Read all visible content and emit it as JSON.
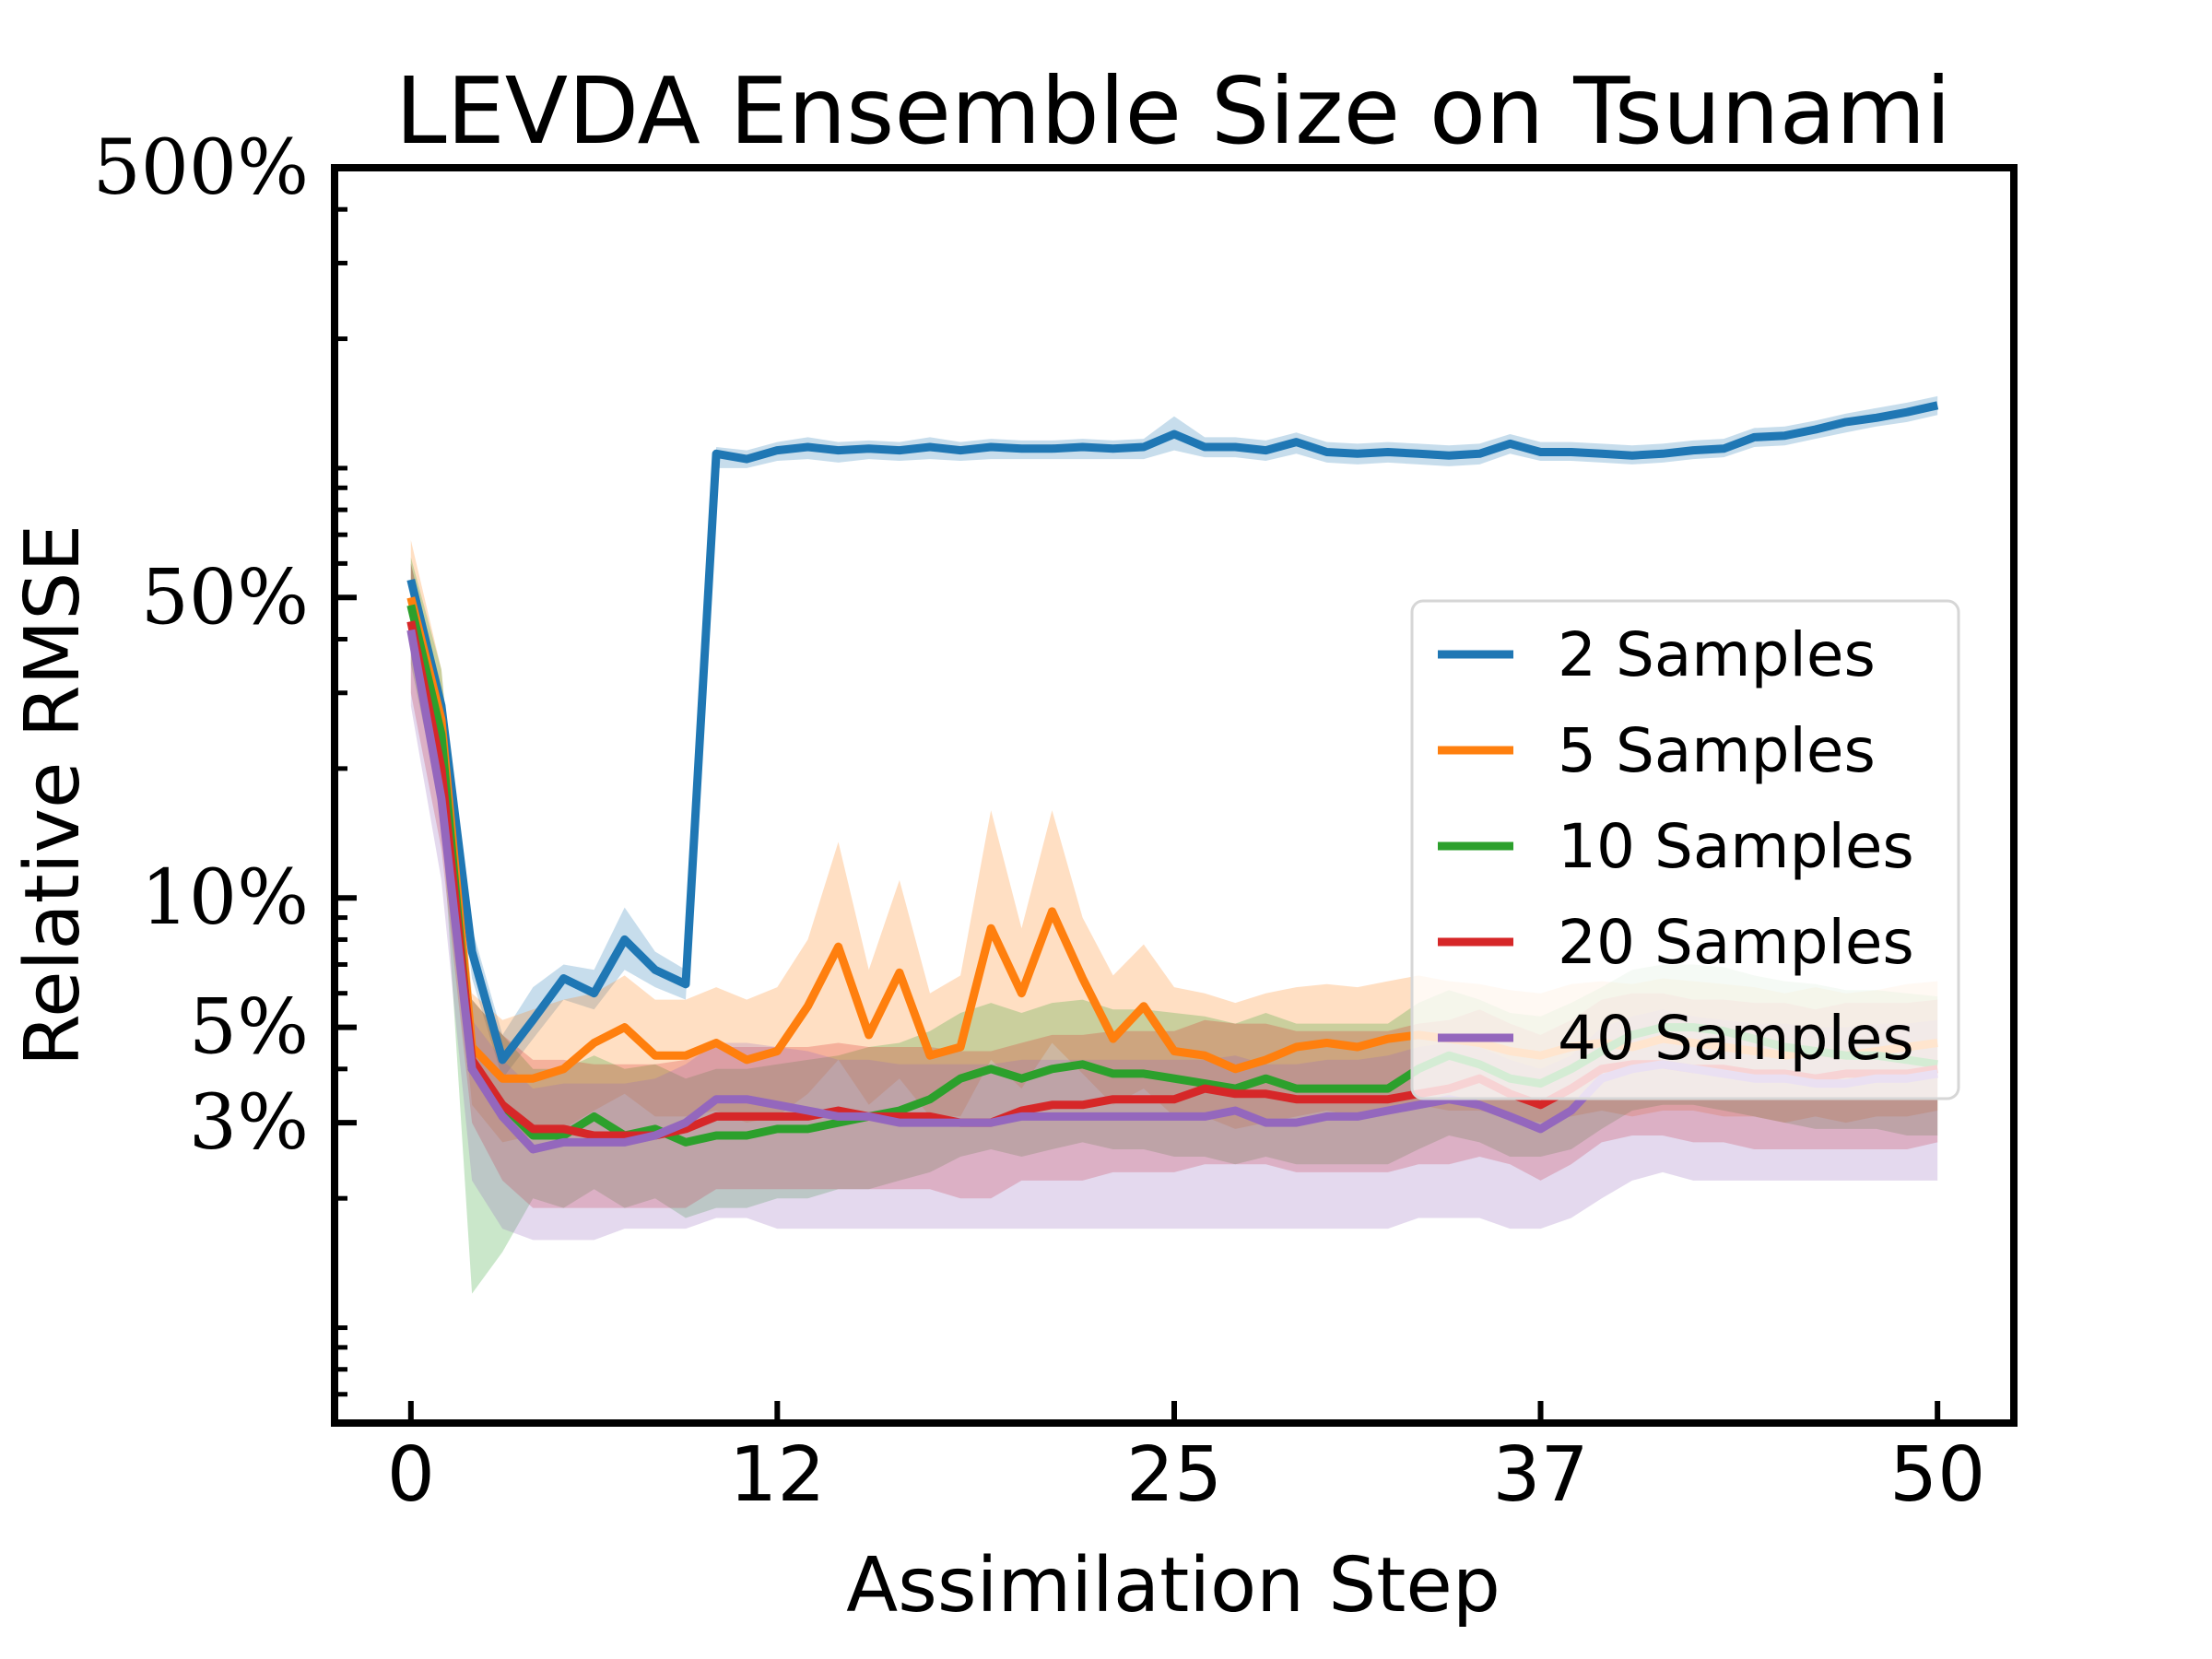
{
  "chart_data": {
    "type": "line",
    "title": "LEVDA Ensemble Size on Tsunami",
    "xlabel": "Assimilation Step",
    "ylabel": "Relative RMSE",
    "yscale": "log",
    "xlim": [
      -2.5,
      52.5
    ],
    "ylim": [
      0.006,
      5.0
    ],
    "xticks": [
      0,
      12,
      25,
      37,
      50
    ],
    "xtick_labels": [
      "0",
      "12",
      "25",
      "37",
      "50"
    ],
    "yticks": [
      0.03,
      0.05,
      0.1,
      0.5,
      5.0
    ],
    "ytick_labels": [
      "3%",
      "5%",
      "10%",
      "50%",
      "500%"
    ],
    "grid": false,
    "legend": "center-right",
    "series": [
      {
        "name": "2 Samples",
        "color": "#1f77b4",
        "x": [
          0,
          1,
          2,
          3,
          4,
          5,
          6,
          7,
          8,
          9,
          10,
          11,
          12,
          13,
          14,
          15,
          16,
          17,
          18,
          19,
          20,
          21,
          22,
          23,
          24,
          25,
          26,
          27,
          28,
          29,
          30,
          31,
          32,
          33,
          34,
          35,
          36,
          37,
          38,
          39,
          40,
          41,
          42,
          43,
          44,
          45,
          46,
          47,
          48,
          49,
          50
        ],
        "values": [
          0.55,
          0.28,
          0.075,
          0.042,
          0.052,
          0.065,
          0.06,
          0.08,
          0.068,
          0.063,
          1.08,
          1.05,
          1.1,
          1.12,
          1.1,
          1.11,
          1.1,
          1.12,
          1.1,
          1.12,
          1.11,
          1.11,
          1.12,
          1.11,
          1.12,
          1.2,
          1.12,
          1.12,
          1.1,
          1.15,
          1.09,
          1.08,
          1.09,
          1.08,
          1.07,
          1.08,
          1.14,
          1.09,
          1.09,
          1.08,
          1.07,
          1.08,
          1.1,
          1.11,
          1.18,
          1.19,
          1.23,
          1.28,
          1.31,
          1.35,
          1.4
        ],
        "lower": [
          0.48,
          0.24,
          0.065,
          0.038,
          0.047,
          0.058,
          0.055,
          0.068,
          0.062,
          0.058,
          1.0,
          1.0,
          1.04,
          1.05,
          1.03,
          1.05,
          1.04,
          1.05,
          1.04,
          1.05,
          1.05,
          1.05,
          1.05,
          1.05,
          1.05,
          1.1,
          1.06,
          1.06,
          1.04,
          1.08,
          1.03,
          1.02,
          1.03,
          1.02,
          1.01,
          1.02,
          1.08,
          1.04,
          1.04,
          1.03,
          1.02,
          1.03,
          1.05,
          1.06,
          1.12,
          1.13,
          1.17,
          1.21,
          1.25,
          1.28,
          1.33
        ],
        "upper": [
          0.6,
          0.31,
          0.085,
          0.048,
          0.062,
          0.07,
          0.068,
          0.095,
          0.075,
          0.068,
          1.12,
          1.1,
          1.15,
          1.18,
          1.15,
          1.16,
          1.15,
          1.18,
          1.15,
          1.17,
          1.16,
          1.16,
          1.17,
          1.16,
          1.17,
          1.32,
          1.18,
          1.18,
          1.16,
          1.21,
          1.15,
          1.14,
          1.15,
          1.14,
          1.13,
          1.14,
          1.2,
          1.15,
          1.15,
          1.14,
          1.13,
          1.14,
          1.16,
          1.17,
          1.24,
          1.25,
          1.29,
          1.34,
          1.38,
          1.42,
          1.47
        ]
      },
      {
        "name": "5 Samples",
        "color": "#ff7f0e",
        "x": [
          0,
          1,
          2,
          3,
          4,
          5,
          6,
          7,
          8,
          9,
          10,
          11,
          12,
          13,
          14,
          15,
          16,
          17,
          18,
          19,
          20,
          21,
          22,
          23,
          24,
          25,
          26,
          27,
          28,
          29,
          30,
          31,
          32,
          33,
          34,
          35,
          36,
          37,
          38,
          39,
          40,
          41,
          42,
          43,
          44,
          45,
          46,
          47,
          48,
          49,
          50
        ],
        "values": [
          0.5,
          0.26,
          0.045,
          0.038,
          0.038,
          0.04,
          0.046,
          0.05,
          0.043,
          0.043,
          0.046,
          0.042,
          0.044,
          0.056,
          0.077,
          0.048,
          0.067,
          0.043,
          0.045,
          0.085,
          0.06,
          0.093,
          0.065,
          0.047,
          0.056,
          0.044,
          0.043,
          0.04,
          0.042,
          0.045,
          0.046,
          0.045,
          0.047,
          0.048,
          0.047,
          0.046,
          0.044,
          0.043,
          0.045,
          0.046,
          0.045,
          0.047,
          0.046,
          0.045,
          0.044,
          0.043,
          0.044,
          0.043,
          0.044,
          0.045,
          0.046
        ],
        "lower": [
          0.4,
          0.19,
          0.033,
          0.027,
          0.028,
          0.029,
          0.032,
          0.035,
          0.031,
          0.031,
          0.032,
          0.03,
          0.031,
          0.035,
          0.042,
          0.033,
          0.038,
          0.031,
          0.031,
          0.042,
          0.036,
          0.046,
          0.039,
          0.033,
          0.036,
          0.031,
          0.031,
          0.029,
          0.03,
          0.031,
          0.032,
          0.031,
          0.032,
          0.033,
          0.032,
          0.032,
          0.031,
          0.03,
          0.031,
          0.032,
          0.031,
          0.032,
          0.032,
          0.031,
          0.031,
          0.03,
          0.031,
          0.03,
          0.031,
          0.031,
          0.032
        ],
        "upper": [
          0.68,
          0.34,
          0.06,
          0.052,
          0.055,
          0.058,
          0.06,
          0.066,
          0.058,
          0.058,
          0.062,
          0.058,
          0.062,
          0.08,
          0.135,
          0.068,
          0.11,
          0.06,
          0.066,
          0.16,
          0.085,
          0.16,
          0.09,
          0.066,
          0.078,
          0.062,
          0.06,
          0.057,
          0.06,
          0.062,
          0.063,
          0.062,
          0.064,
          0.066,
          0.064,
          0.063,
          0.061,
          0.06,
          0.063,
          0.064,
          0.063,
          0.065,
          0.064,
          0.063,
          0.062,
          0.06,
          0.062,
          0.06,
          0.061,
          0.063,
          0.064
        ]
      },
      {
        "name": "10 Samples",
        "color": "#2ca02c",
        "x": [
          0,
          1,
          2,
          3,
          4,
          5,
          6,
          7,
          8,
          9,
          10,
          11,
          12,
          13,
          14,
          15,
          16,
          17,
          18,
          19,
          20,
          21,
          22,
          23,
          24,
          25,
          26,
          27,
          28,
          29,
          30,
          31,
          32,
          33,
          34,
          35,
          36,
          37,
          38,
          39,
          40,
          41,
          42,
          43,
          44,
          45,
          46,
          47,
          48,
          49,
          50
        ],
        "values": [
          0.48,
          0.24,
          0.04,
          0.033,
          0.028,
          0.028,
          0.031,
          0.028,
          0.029,
          0.027,
          0.028,
          0.028,
          0.029,
          0.029,
          0.03,
          0.031,
          0.032,
          0.034,
          0.038,
          0.04,
          0.038,
          0.04,
          0.041,
          0.039,
          0.039,
          0.038,
          0.037,
          0.036,
          0.038,
          0.036,
          0.036,
          0.036,
          0.036,
          0.04,
          0.043,
          0.041,
          0.038,
          0.037,
          0.04,
          0.044,
          0.048,
          0.05,
          0.05,
          0.049,
          0.047,
          0.045,
          0.044,
          0.043,
          0.043,
          0.042,
          0.041
        ],
        "lower": [
          0.35,
          0.16,
          0.012,
          0.015,
          0.02,
          0.019,
          0.021,
          0.019,
          0.02,
          0.018,
          0.019,
          0.019,
          0.02,
          0.02,
          0.021,
          0.021,
          0.022,
          0.023,
          0.025,
          0.026,
          0.025,
          0.026,
          0.027,
          0.026,
          0.026,
          0.025,
          0.025,
          0.024,
          0.025,
          0.024,
          0.024,
          0.024,
          0.024,
          0.026,
          0.028,
          0.027,
          0.025,
          0.025,
          0.026,
          0.029,
          0.032,
          0.033,
          0.033,
          0.032,
          0.031,
          0.03,
          0.029,
          0.029,
          0.029,
          0.028,
          0.028
        ],
        "upper": [
          0.62,
          0.34,
          0.058,
          0.048,
          0.04,
          0.04,
          0.043,
          0.04,
          0.041,
          0.038,
          0.04,
          0.04,
          0.041,
          0.042,
          0.043,
          0.045,
          0.046,
          0.049,
          0.054,
          0.057,
          0.054,
          0.057,
          0.058,
          0.055,
          0.055,
          0.054,
          0.053,
          0.051,
          0.054,
          0.051,
          0.051,
          0.051,
          0.051,
          0.057,
          0.061,
          0.058,
          0.054,
          0.053,
          0.057,
          0.062,
          0.068,
          0.07,
          0.07,
          0.069,
          0.066,
          0.064,
          0.063,
          0.061,
          0.061,
          0.06,
          0.059
        ]
      },
      {
        "name": "20 Samples",
        "color": "#d62728",
        "x": [
          0,
          1,
          2,
          3,
          4,
          5,
          6,
          7,
          8,
          9,
          10,
          11,
          12,
          13,
          14,
          15,
          16,
          17,
          18,
          19,
          20,
          21,
          22,
          23,
          24,
          25,
          26,
          27,
          28,
          29,
          30,
          31,
          32,
          33,
          34,
          35,
          36,
          37,
          38,
          39,
          40,
          41,
          42,
          43,
          44,
          45,
          46,
          47,
          48,
          49,
          50
        ],
        "values": [
          0.44,
          0.2,
          0.042,
          0.033,
          0.029,
          0.029,
          0.028,
          0.028,
          0.028,
          0.029,
          0.031,
          0.031,
          0.031,
          0.031,
          0.032,
          0.031,
          0.031,
          0.031,
          0.03,
          0.03,
          0.032,
          0.033,
          0.033,
          0.034,
          0.034,
          0.034,
          0.036,
          0.035,
          0.035,
          0.034,
          0.034,
          0.034,
          0.034,
          0.035,
          0.036,
          0.038,
          0.035,
          0.033,
          0.036,
          0.04,
          0.041,
          0.041,
          0.04,
          0.04,
          0.039,
          0.039,
          0.038,
          0.039,
          0.039,
          0.039,
          0.04
        ],
        "lower": [
          0.3,
          0.13,
          0.03,
          0.022,
          0.019,
          0.019,
          0.019,
          0.019,
          0.019,
          0.019,
          0.021,
          0.021,
          0.021,
          0.021,
          0.021,
          0.021,
          0.021,
          0.021,
          0.02,
          0.02,
          0.022,
          0.022,
          0.022,
          0.023,
          0.023,
          0.023,
          0.024,
          0.024,
          0.024,
          0.023,
          0.023,
          0.023,
          0.023,
          0.024,
          0.024,
          0.025,
          0.024,
          0.022,
          0.024,
          0.027,
          0.028,
          0.028,
          0.027,
          0.027,
          0.026,
          0.026,
          0.026,
          0.026,
          0.026,
          0.026,
          0.027
        ],
        "upper": [
          0.6,
          0.3,
          0.058,
          0.048,
          0.042,
          0.042,
          0.041,
          0.041,
          0.041,
          0.042,
          0.045,
          0.045,
          0.045,
          0.045,
          0.046,
          0.045,
          0.045,
          0.045,
          0.044,
          0.044,
          0.046,
          0.048,
          0.048,
          0.049,
          0.049,
          0.049,
          0.052,
          0.051,
          0.051,
          0.049,
          0.049,
          0.049,
          0.049,
          0.051,
          0.052,
          0.055,
          0.051,
          0.048,
          0.052,
          0.058,
          0.06,
          0.06,
          0.058,
          0.058,
          0.057,
          0.057,
          0.055,
          0.057,
          0.057,
          0.057,
          0.058
        ]
      },
      {
        "name": "40 Samples",
        "color": "#9467bd",
        "x": [
          0,
          1,
          2,
          3,
          4,
          5,
          6,
          7,
          8,
          9,
          10,
          11,
          12,
          13,
          14,
          15,
          16,
          17,
          18,
          19,
          20,
          21,
          22,
          23,
          24,
          25,
          26,
          27,
          28,
          29,
          30,
          31,
          32,
          33,
          34,
          35,
          36,
          37,
          38,
          39,
          40,
          41,
          42,
          43,
          44,
          45,
          46,
          47,
          48,
          49,
          50
        ],
        "values": [
          0.42,
          0.17,
          0.04,
          0.031,
          0.026,
          0.027,
          0.027,
          0.027,
          0.028,
          0.03,
          0.034,
          0.034,
          0.033,
          0.032,
          0.031,
          0.031,
          0.03,
          0.03,
          0.03,
          0.03,
          0.031,
          0.031,
          0.031,
          0.031,
          0.031,
          0.031,
          0.031,
          0.032,
          0.03,
          0.03,
          0.031,
          0.031,
          0.032,
          0.033,
          0.034,
          0.033,
          0.031,
          0.029,
          0.032,
          0.038,
          0.04,
          0.041,
          0.04,
          0.039,
          0.038,
          0.038,
          0.037,
          0.037,
          0.038,
          0.038,
          0.039
        ],
        "lower": [
          0.28,
          0.11,
          0.022,
          0.017,
          0.016,
          0.016,
          0.016,
          0.017,
          0.017,
          0.017,
          0.018,
          0.018,
          0.017,
          0.017,
          0.017,
          0.017,
          0.017,
          0.017,
          0.017,
          0.017,
          0.017,
          0.017,
          0.017,
          0.017,
          0.017,
          0.017,
          0.017,
          0.017,
          0.017,
          0.017,
          0.017,
          0.017,
          0.017,
          0.018,
          0.018,
          0.018,
          0.017,
          0.017,
          0.018,
          0.02,
          0.022,
          0.023,
          0.022,
          0.022,
          0.022,
          0.022,
          0.022,
          0.022,
          0.022,
          0.022,
          0.022
        ],
        "upper": [
          0.55,
          0.27,
          0.052,
          0.042,
          0.036,
          0.037,
          0.037,
          0.037,
          0.038,
          0.041,
          0.046,
          0.046,
          0.045,
          0.044,
          0.042,
          0.042,
          0.041,
          0.041,
          0.041,
          0.041,
          0.042,
          0.042,
          0.042,
          0.042,
          0.042,
          0.042,
          0.042,
          0.043,
          0.041,
          0.041,
          0.042,
          0.042,
          0.043,
          0.045,
          0.046,
          0.045,
          0.042,
          0.04,
          0.043,
          0.05,
          0.053,
          0.055,
          0.053,
          0.052,
          0.051,
          0.051,
          0.05,
          0.05,
          0.051,
          0.051,
          0.052
        ]
      }
    ]
  }
}
